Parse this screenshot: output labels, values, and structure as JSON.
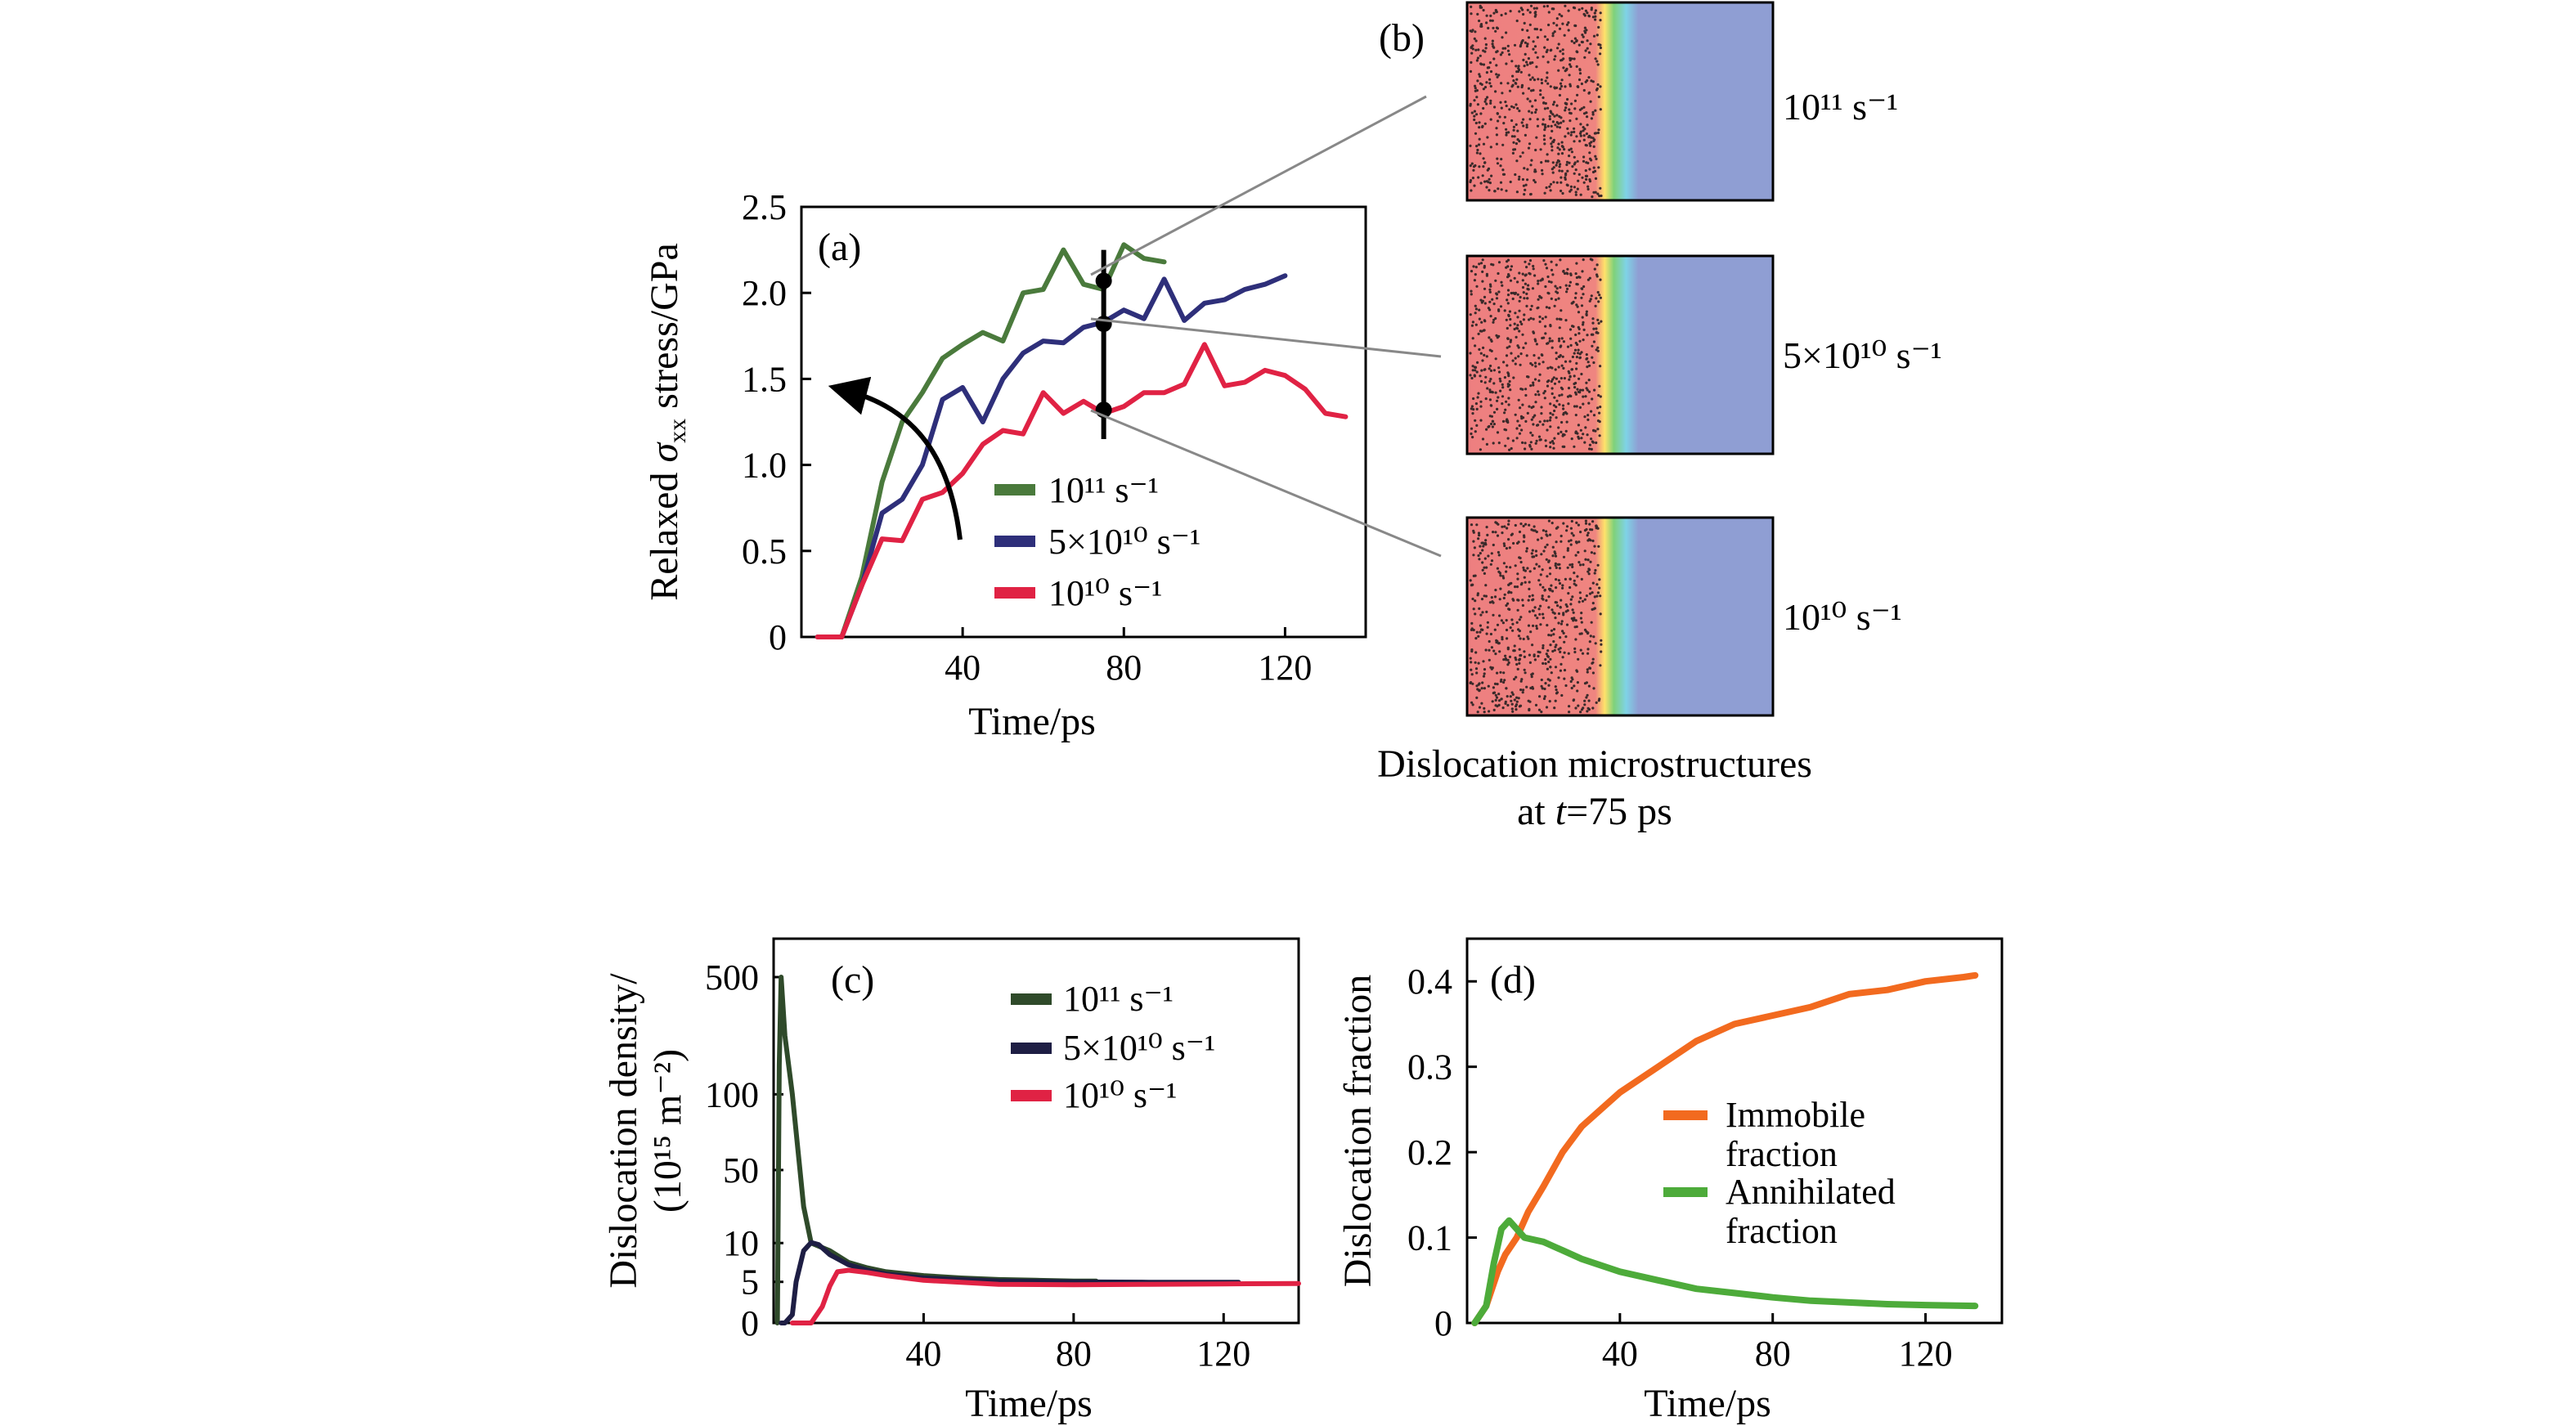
{
  "chart_data": [
    {
      "panel": "(a)",
      "type": "line",
      "xlabel": "Time/ps",
      "ylabel_parts": [
        "Relaxed ",
        "σ",
        "xx",
        " stress/GPa"
      ],
      "xlim": [
        0,
        140
      ],
      "ylim": [
        0,
        2.5
      ],
      "xticks": [
        40,
        80,
        120
      ],
      "yticks": [
        0,
        0.5,
        1.0,
        1.5,
        2.0,
        2.5
      ],
      "ytick_labels": [
        "0",
        "0.5",
        "1.0",
        "1.5",
        "2.0",
        "2.5"
      ],
      "legend_position": "lower-center",
      "series": [
        {
          "name": "10¹¹ s⁻¹",
          "color": "#4a7a3c",
          "x": [
            4,
            10,
            15,
            20,
            25,
            30,
            35,
            40,
            45,
            50,
            55,
            60,
            65,
            70,
            75,
            80,
            85,
            90
          ],
          "y": [
            0,
            0,
            0.35,
            0.9,
            1.25,
            1.42,
            1.62,
            1.7,
            1.77,
            1.72,
            2.0,
            2.02,
            2.25,
            2.05,
            2.02,
            2.28,
            2.2,
            2.18
          ]
        },
        {
          "name": "5×10¹⁰ s⁻¹",
          "color": "#2e2f7a",
          "x": [
            4,
            10,
            15,
            20,
            25,
            30,
            35,
            40,
            45,
            50,
            55,
            60,
            65,
            70,
            75,
            80,
            85,
            90,
            95,
            100,
            105,
            110,
            115,
            120
          ],
          "y": [
            0,
            0,
            0.3,
            0.72,
            0.8,
            1.0,
            1.38,
            1.45,
            1.25,
            1.5,
            1.65,
            1.72,
            1.71,
            1.8,
            1.83,
            1.9,
            1.85,
            2.08,
            1.84,
            1.94,
            1.96,
            2.02,
            2.05,
            2.1
          ]
        },
        {
          "name": "10¹⁰ s⁻¹",
          "color": "#e02244",
          "x": [
            4,
            10,
            15,
            20,
            25,
            30,
            35,
            40,
            45,
            50,
            55,
            60,
            65,
            70,
            75,
            80,
            85,
            90,
            95,
            100,
            105,
            110,
            115,
            120,
            125,
            130,
            135
          ],
          "y": [
            0,
            0,
            0.3,
            0.57,
            0.56,
            0.8,
            0.84,
            0.95,
            1.12,
            1.2,
            1.18,
            1.42,
            1.3,
            1.37,
            1.3,
            1.34,
            1.42,
            1.42,
            1.47,
            1.7,
            1.46,
            1.48,
            1.55,
            1.52,
            1.44,
            1.3,
            1.28
          ]
        }
      ],
      "marker_time": 75,
      "marker_values": [
        2.07,
        1.82,
        1.32
      ]
    },
    {
      "panel": "(b)",
      "type": "image",
      "caption_line1": "Dislocation microstructures",
      "caption_line2_prefix": "at ",
      "caption_line2_var": "t",
      "caption_line2_suffix": "=75 ps",
      "rates": [
        "10¹¹ s⁻¹",
        "5×10¹⁰ s⁻¹",
        "10¹⁰ s⁻¹"
      ],
      "colors": {
        "left": "#ee7f80",
        "mid": "#ffe26b",
        "right": "#8f9ed3"
      }
    },
    {
      "panel": "(c)",
      "type": "line",
      "xlabel": "Time/ps",
      "ylabel_line1": "Dislocation density/",
      "ylabel_line2": "(10¹⁵ m⁻²)",
      "xlim": [
        0,
        140
      ],
      "xticks": [
        40,
        80,
        120
      ],
      "ytick_labels": [
        "0",
        "5",
        "10",
        "50",
        "100",
        "500"
      ],
      "legend_position": "top-right",
      "series": [
        {
          "name": "10¹¹ s⁻¹",
          "color": "#2f4a2a",
          "x": [
            1,
            1.5,
            2,
            3,
            5,
            8,
            10,
            15,
            20,
            25,
            30,
            40,
            50,
            60,
            70,
            80,
            86
          ],
          "y": [
            0,
            200,
            500,
            300,
            100,
            30,
            10,
            9,
            7.5,
            6.8,
            6.3,
            5.8,
            5.5,
            5.3,
            5.2,
            5.1,
            5.1
          ]
        },
        {
          "name": "5×10¹⁰ s⁻¹",
          "color": "#1e1e44",
          "x": [
            2,
            3,
            5,
            6,
            8,
            10,
            12,
            15,
            20,
            25,
            30,
            40,
            60,
            80,
            100,
            124
          ],
          "y": [
            0,
            0,
            1,
            5,
            9,
            10.3,
            9.8,
            8.5,
            7.2,
            6.5,
            6,
            5.5,
            5.1,
            5.0,
            4.95,
            4.95
          ]
        },
        {
          "name": "10¹⁰ s⁻¹",
          "color": "#e02244",
          "x": [
            5,
            10,
            13,
            15,
            17,
            20,
            25,
            30,
            40,
            60,
            80,
            100,
            120,
            140
          ],
          "y": [
            0,
            0,
            2,
            4.5,
            6.3,
            6.5,
            6.2,
            5.8,
            5.2,
            4.7,
            4.65,
            4.7,
            4.75,
            4.8
          ]
        }
      ]
    },
    {
      "panel": "(d)",
      "type": "line",
      "xlabel": "Time/ps",
      "ylabel": "Dislocation fraction",
      "xlim": [
        0,
        140
      ],
      "ylim": [
        0,
        0.45
      ],
      "xticks": [
        40,
        80,
        120
      ],
      "yticks": [
        0,
        0.1,
        0.2,
        0.3,
        0.4
      ],
      "ytick_labels": [
        "0",
        "0.1",
        "0.2",
        "0.3",
        "0.4"
      ],
      "legend_position": "center-right",
      "series": [
        {
          "name_line1": "Immobile",
          "name_line2": "fraction",
          "color": "#f26a1f",
          "x": [
            2,
            5,
            8,
            10,
            13,
            16,
            20,
            25,
            30,
            35,
            40,
            50,
            60,
            70,
            80,
            90,
            100,
            110,
            120,
            130,
            133
          ],
          "y": [
            0,
            0.02,
            0.06,
            0.08,
            0.1,
            0.13,
            0.16,
            0.2,
            0.23,
            0.25,
            0.27,
            0.3,
            0.33,
            0.35,
            0.36,
            0.37,
            0.385,
            0.39,
            0.4,
            0.405,
            0.407
          ]
        },
        {
          "name_line1": "Annihilated",
          "name_line2": "fraction",
          "color": "#4dab3a",
          "x": [
            2,
            5,
            7,
            9,
            11,
            13,
            15,
            20,
            25,
            30,
            40,
            50,
            60,
            70,
            80,
            90,
            100,
            110,
            120,
            133
          ],
          "y": [
            0,
            0.02,
            0.07,
            0.11,
            0.12,
            0.11,
            0.1,
            0.095,
            0.085,
            0.075,
            0.06,
            0.05,
            0.04,
            0.035,
            0.03,
            0.026,
            0.024,
            0.022,
            0.021,
            0.02
          ]
        }
      ]
    }
  ]
}
